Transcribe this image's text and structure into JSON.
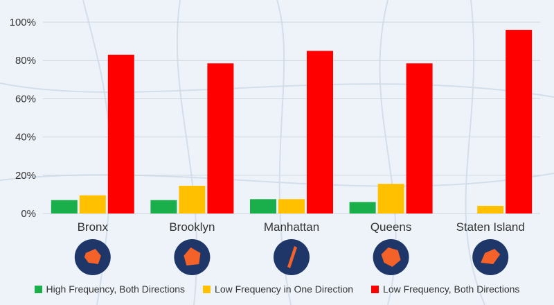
{
  "colors": {
    "high_both": "#1aaf4b",
    "low_one": "#ffc000",
    "low_both": "#ff0000",
    "badge": "#1f3768",
    "borough_shape": "#f4622a"
  },
  "chart_data": {
    "type": "bar",
    "title": "",
    "xlabel": "",
    "ylabel": "",
    "ylim": [
      0,
      100
    ],
    "yticks": [
      "0%",
      "20%",
      "40%",
      "60%",
      "80%",
      "100%"
    ],
    "grid": true,
    "legend_position": "bottom",
    "categories": [
      "Bronx",
      "Brooklyn",
      "Manhattan",
      "Queens",
      "Staten Island"
    ],
    "series": [
      {
        "name": "High Frequency, Both Directions",
        "color_key": "high_both",
        "values": [
          7,
          7,
          7.5,
          6,
          0
        ]
      },
      {
        "name": "Low Frequency in One Direction",
        "color_key": "low_one",
        "values": [
          9.5,
          14.5,
          7.5,
          15.5,
          4
        ]
      },
      {
        "name": "Low Frequency, Both Directions",
        "color_key": "low_both",
        "values": [
          83,
          78.5,
          85,
          78.5,
          96
        ]
      }
    ],
    "category_icons": [
      "bronx-map-icon",
      "brooklyn-map-icon",
      "manhattan-map-icon",
      "queens-map-icon",
      "staten-island-map-icon"
    ]
  }
}
